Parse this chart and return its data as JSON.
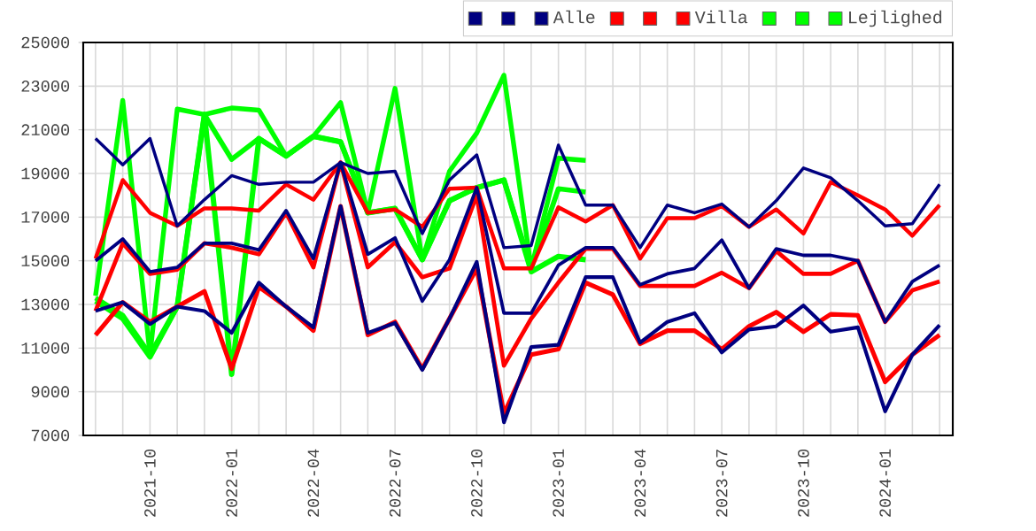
{
  "chart_data": {
    "type": "line",
    "grid": true,
    "legend": "top right",
    "x": [
      "2021-08",
      "2021-09",
      "2021-10",
      "2021-11",
      "2021-12",
      "2022-01",
      "2022-02",
      "2022-03",
      "2022-04",
      "2022-05",
      "2022-06",
      "2022-07",
      "2022-08",
      "2022-09",
      "2022-10",
      "2022-11",
      "2022-12",
      "2023-01",
      "2023-02",
      "2023-03",
      "2023-04",
      "2023-05",
      "2023-06",
      "2023-07",
      "2023-08",
      "2023-09",
      "2023-10",
      "2023-11",
      "2023-12",
      "2024-01",
      "2024-02",
      "2024-03"
    ],
    "xlim": [
      "2021-07-18",
      "2024-03-16"
    ],
    "xticks": [
      {
        "value": "2021-08",
        "label": null
      },
      {
        "value": "2021-09",
        "label": null
      },
      "2021-10",
      {
        "value": "2021-11",
        "label": null
      },
      {
        "value": "2021-12",
        "label": null
      },
      "2022-01",
      {
        "value": "2022-02",
        "label": null
      },
      {
        "value": "2022-03",
        "label": null
      },
      "2022-04",
      {
        "value": "2022-05",
        "label": null
      },
      {
        "value": "2022-06",
        "label": null
      },
      "2022-07",
      {
        "value": "2022-08",
        "label": null
      },
      {
        "value": "2022-09",
        "label": null
      },
      "2022-10",
      {
        "value": "2022-11",
        "label": null
      },
      {
        "value": "2022-12",
        "label": null
      },
      "2023-01",
      {
        "value": "2023-02",
        "label": null
      },
      {
        "value": "2023-03",
        "label": null
      },
      "2023-04",
      {
        "value": "2023-05",
        "label": null
      },
      {
        "value": "2023-06",
        "label": null
      },
      "2023-07",
      {
        "value": "2023-08",
        "label": null
      },
      {
        "value": "2023-09",
        "label": null
      },
      "2023-10",
      {
        "value": "2023-11",
        "label": null
      },
      {
        "value": "2023-12",
        "label": null
      },
      "2024-01",
      {
        "value": "2024-02",
        "label": null
      },
      {
        "value": "2024-03",
        "label": null
      }
    ],
    "ylim": [
      7000,
      25000
    ],
    "yticks": [
      7000,
      9000,
      11000,
      13000,
      15000,
      17000,
      19000,
      21000,
      23000,
      25000
    ],
    "series": [
      {
        "color": "#000080",
        "values": [
          20600,
          19400,
          20600,
          16600,
          17800,
          18900,
          18500,
          18600,
          18600,
          19500,
          19000,
          19100,
          16250,
          18700,
          19850,
          15600,
          15700,
          20300,
          17550,
          17550,
          15600,
          17550,
          17200,
          17600,
          16550,
          17750,
          19250,
          18800,
          17750,
          16600,
          16700,
          18500
        ]
      },
      {
        "color": "#000080",
        "values": [
          15000,
          16000,
          14500,
          14700,
          15800,
          15800,
          15500,
          17300,
          15100,
          19500,
          15300,
          16050,
          13150,
          15050,
          18350,
          12600,
          12600,
          14800,
          15600,
          15600,
          13900,
          14400,
          14650,
          15950,
          13750,
          15550,
          15250,
          15250,
          15000,
          12200,
          14050,
          14800
        ]
      },
      {
        "name": "Alle",
        "color": "#000080",
        "values": [
          12700,
          13100,
          12100,
          12900,
          12700,
          11700,
          14000,
          12900,
          11950,
          17500,
          11700,
          12150,
          10000,
          12350,
          14950,
          7600,
          11050,
          11150,
          14250,
          14250,
          11250,
          12200,
          12600,
          10800,
          11850,
          12000,
          12950,
          11750,
          11950,
          8100,
          10700,
          12050
        ]
      },
      {
        "color": "#ff0000",
        "values": [
          15100,
          18700,
          17200,
          16600,
          17400,
          17400,
          17300,
          18500,
          17800,
          19500,
          17200,
          17350,
          16550,
          18300,
          18350,
          14650,
          14650,
          17450,
          16800,
          17550,
          15100,
          16950,
          16950,
          17500,
          16550,
          17350,
          16250,
          18600,
          18000,
          17350,
          16150,
          17550
        ]
      },
      {
        "color": "#ff0000",
        "values": [
          12700,
          15800,
          14400,
          14600,
          15800,
          15600,
          15300,
          17200,
          14700,
          19500,
          14700,
          15850,
          14250,
          14650,
          18000,
          10200,
          12350,
          14000,
          15550,
          15550,
          13850,
          13850,
          13850,
          14450,
          13750,
          15450,
          14400,
          14400,
          15000,
          12200,
          13650,
          14050
        ]
      },
      {
        "name": "Villa",
        "color": "#ff0000",
        "values": [
          11600,
          13100,
          12200,
          12900,
          13600,
          10050,
          13800,
          12900,
          11800,
          17500,
          11600,
          12200,
          10050,
          12350,
          14650,
          8000,
          10700,
          10950,
          14000,
          13450,
          11200,
          11800,
          11800,
          10950,
          12000,
          12650,
          11750,
          12550,
          12500,
          9450,
          10700,
          11600
        ]
      },
      {
        "color": "#00ff00",
        "x": [
          "2021-08",
          "2021-09",
          "2021-10",
          "2021-11",
          "2021-12",
          "2022-01",
          "2022-02",
          "2022-03",
          "2022-04",
          "2022-05",
          "2022-06",
          "2022-07",
          "2022-08",
          "2022-09",
          "2022-10",
          "2022-11",
          "2022-12",
          "2023-01",
          "2023-02"
        ],
        "values": [
          13400,
          22350,
          10700,
          21950,
          21700,
          22000,
          21900,
          19800,
          20700,
          22250,
          17200,
          22900,
          15050,
          19100,
          20850,
          23500,
          14650,
          19700,
          19600
        ]
      },
      {
        "color": "#00ff00",
        "x": [
          "2021-08",
          "2021-09",
          "2021-10",
          "2021-11",
          "2021-12",
          "2022-01",
          "2022-02",
          "2022-03",
          "2022-04",
          "2022-05",
          "2022-06",
          "2022-07",
          "2022-08",
          "2022-09",
          "2022-10",
          "2022-11",
          "2022-12",
          "2023-01",
          "2023-02"
        ],
        "values": [
          13300,
          12500,
          10700,
          12900,
          21700,
          19650,
          20600,
          19800,
          20700,
          20450,
          17200,
          17400,
          15050,
          17750,
          18350,
          18700,
          14650,
          18300,
          18150
        ]
      },
      {
        "name": "Lejlighed",
        "color": "#00ff00",
        "x": [
          "2021-08",
          "2021-09",
          "2021-10",
          "2021-11",
          "2021-12",
          "2022-01",
          "2022-02",
          "2022-03",
          "2022-04",
          "2022-05",
          "2022-06",
          "2022-07",
          "2022-08",
          "2022-09",
          "2022-10",
          "2022-11",
          "2022-12",
          "2023-01",
          "2023-02"
        ],
        "values": [
          13150,
          12350,
          10600,
          12900,
          21700,
          9800,
          20600,
          19800,
          20700,
          20450,
          17200,
          17400,
          15050,
          17750,
          18350,
          18700,
          14500,
          15200,
          15050
        ]
      }
    ]
  }
}
